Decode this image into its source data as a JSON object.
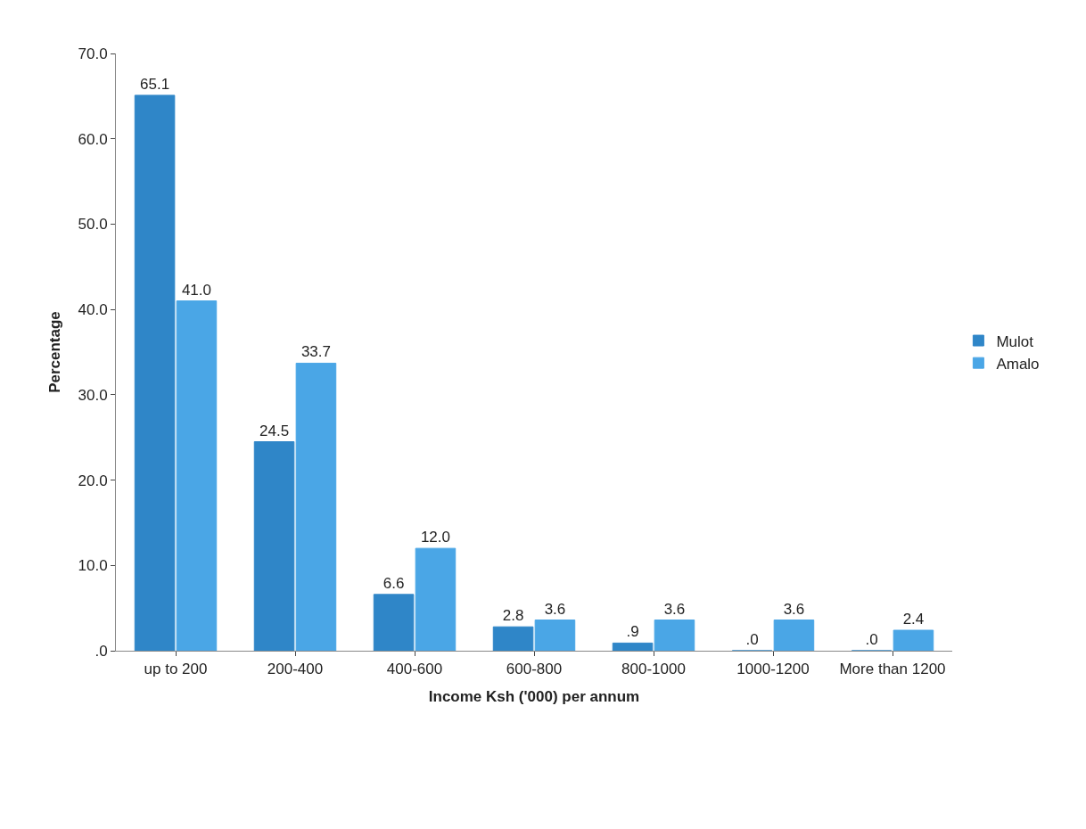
{
  "chart_data": {
    "type": "bar",
    "xlabel": "Income Ksh ('000) per annum",
    "ylabel": "Percentage",
    "categories": [
      "up to 200",
      "200-400",
      "400-600",
      "600-800",
      "800-1000",
      "1000-1200",
      "More than 1200"
    ],
    "series": [
      {
        "name": "Mulot",
        "color": "#2f86c8",
        "values": [
          65.1,
          24.5,
          6.6,
          2.8,
          0.9,
          0.0,
          0.0
        ],
        "value_labels": [
          "65.1",
          "24.5",
          "6.6",
          "2.8",
          ".9",
          ".0",
          ".0"
        ]
      },
      {
        "name": "Amalo",
        "color": "#4aa6e6",
        "values": [
          41.0,
          33.7,
          12.0,
          3.6,
          3.6,
          3.6,
          2.4
        ],
        "value_labels": [
          "41.0",
          "33.7",
          "12.0",
          "3.6",
          "3.6",
          "3.6",
          "2.4"
        ]
      }
    ],
    "ylim": [
      0,
      70
    ],
    "yticks": [
      {
        "value": 0,
        "label": ".0"
      },
      {
        "value": 10,
        "label": "10.0"
      },
      {
        "value": 20,
        "label": "20.0"
      },
      {
        "value": 30,
        "label": "30.0"
      },
      {
        "value": 40,
        "label": "40.0"
      },
      {
        "value": 50,
        "label": "50.0"
      },
      {
        "value": 60,
        "label": "60.0"
      },
      {
        "value": 70,
        "label": "70.0"
      }
    ],
    "legend": "right"
  }
}
